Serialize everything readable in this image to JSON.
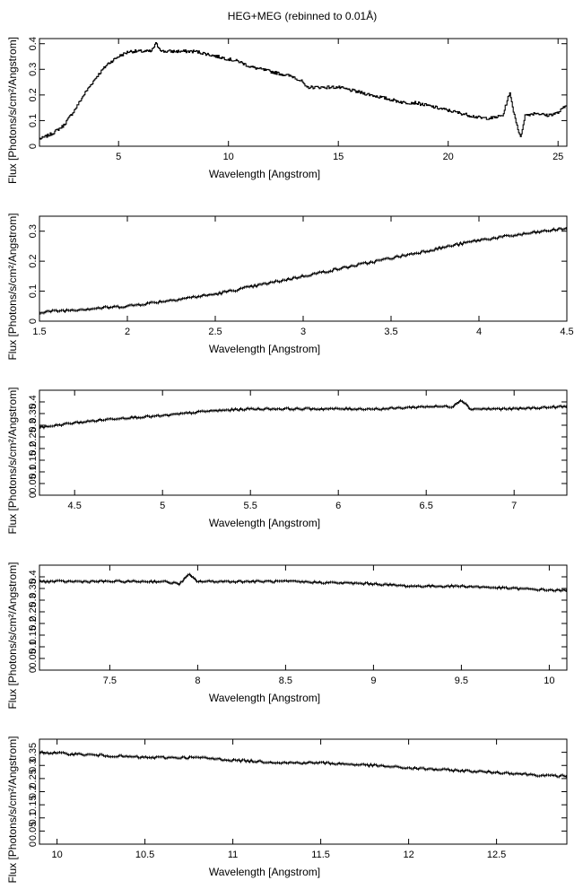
{
  "figure": {
    "title": "HEG+MEG (rebinned to 0.01Å)"
  },
  "chart_data": [
    {
      "type": "line",
      "xlabel": "Wavelength [Angstrom]",
      "ylabel": "Flux [Photons/s/cm²/Angstrom]",
      "xlim": [
        1.4,
        25.4
      ],
      "ylim": [
        0,
        0.42
      ],
      "xticks": [
        5,
        10,
        15,
        20,
        25
      ],
      "yticks": [
        0,
        0.1,
        0.2,
        0.3,
        0.4
      ],
      "xtick_labels": [
        "5",
        "10",
        "15",
        "20",
        "25"
      ],
      "ytick_labels": [
        "0",
        "0.1",
        "0.2",
        "0.3",
        "0.4"
      ],
      "series": [
        {
          "x": [
            1.5,
            2.0,
            2.5,
            3.0,
            3.5,
            4.0,
            4.5,
            5.0,
            5.5,
            6.0,
            6.5,
            6.7,
            7.0,
            7.5,
            8.0,
            8.5,
            9.0,
            9.5,
            10.0,
            10.5,
            11.0,
            11.5,
            12.0,
            12.5,
            13.0,
            13.4,
            13.5,
            14.0,
            14.5,
            15.0,
            15.5,
            16.0,
            16.5,
            17.0,
            17.5,
            18.0,
            18.5,
            19.0,
            19.5,
            20.0,
            20.5,
            21.0,
            21.5,
            22.0,
            22.5,
            22.8,
            23.0,
            23.3,
            23.5,
            24.0,
            24.5,
            25.0,
            25.4
          ],
          "y": [
            0.03,
            0.05,
            0.08,
            0.14,
            0.21,
            0.27,
            0.32,
            0.35,
            0.37,
            0.37,
            0.37,
            0.4,
            0.37,
            0.37,
            0.37,
            0.37,
            0.36,
            0.35,
            0.34,
            0.33,
            0.31,
            0.3,
            0.29,
            0.28,
            0.27,
            0.25,
            0.23,
            0.23,
            0.23,
            0.23,
            0.22,
            0.21,
            0.2,
            0.19,
            0.18,
            0.17,
            0.17,
            0.16,
            0.15,
            0.14,
            0.13,
            0.12,
            0.11,
            0.11,
            0.12,
            0.21,
            0.13,
            0.03,
            0.12,
            0.13,
            0.12,
            0.13,
            0.16
          ]
        }
      ]
    },
    {
      "type": "line",
      "xlabel": "Wavelength [Angstrom]",
      "ylabel": "Flux [Photons/s/cm²/Angstrom]",
      "xlim": [
        1.5,
        4.5
      ],
      "ylim": [
        0,
        0.35
      ],
      "xticks": [
        1.5,
        2,
        2.5,
        3,
        3.5,
        4,
        4.5
      ],
      "yticks": [
        0,
        0.1,
        0.2,
        0.3
      ],
      "xtick_labels": [
        "1.5",
        "2",
        "2.5",
        "3",
        "3.5",
        "4",
        "4.5"
      ],
      "ytick_labels": [
        "0",
        "0.1",
        "0.2",
        "0.3"
      ],
      "series": [
        {
          "x": [
            1.5,
            1.75,
            2.0,
            2.25,
            2.5,
            2.75,
            3.0,
            3.25,
            3.5,
            3.75,
            4.0,
            4.25,
            4.5
          ],
          "y": [
            0.03,
            0.04,
            0.05,
            0.07,
            0.09,
            0.12,
            0.15,
            0.18,
            0.21,
            0.24,
            0.27,
            0.29,
            0.31
          ]
        }
      ]
    },
    {
      "type": "line",
      "xlabel": "Wavelength [Angstrom]",
      "ylabel": "Flux [Photons/s/cm²/Angstrom]",
      "xlim": [
        4.3,
        7.3
      ],
      "ylim": [
        0,
        0.45
      ],
      "xticks": [
        4.5,
        5,
        5.5,
        6,
        6.5,
        7
      ],
      "yticks": [
        0,
        0.05,
        0.1,
        0.15,
        0.2,
        0.25,
        0.3,
        0.35,
        0.4
      ],
      "xtick_labels": [
        "4.5",
        "5",
        "5.5",
        "6",
        "6.5",
        "7"
      ],
      "ytick_labels": [
        "0",
        "0.05",
        "0.1",
        "0.15",
        "0.2",
        "0.25",
        "0.3",
        "0.35",
        "0.4"
      ],
      "series": [
        {
          "x": [
            4.3,
            4.5,
            4.75,
            5.0,
            5.25,
            5.5,
            5.75,
            6.0,
            6.25,
            6.5,
            6.65,
            6.7,
            6.75,
            7.0,
            7.3
          ],
          "y": [
            0.29,
            0.31,
            0.33,
            0.34,
            0.36,
            0.37,
            0.37,
            0.37,
            0.37,
            0.38,
            0.38,
            0.41,
            0.37,
            0.37,
            0.38
          ]
        }
      ]
    },
    {
      "type": "line",
      "xlabel": "Wavelength [Angstrom]",
      "ylabel": "Flux [Photons/s/cm²/Angstrom]",
      "xlim": [
        7.1,
        10.1
      ],
      "ylim": [
        0,
        0.45
      ],
      "xticks": [
        7.5,
        8,
        8.5,
        9,
        9.5,
        10
      ],
      "yticks": [
        0,
        0.05,
        0.1,
        0.15,
        0.2,
        0.25,
        0.3,
        0.35,
        0.4
      ],
      "xtick_labels": [
        "7.5",
        "8",
        "8.5",
        "9",
        "9.5",
        "10"
      ],
      "ytick_labels": [
        "0",
        "0.05",
        "0.1",
        "0.15",
        "0.2",
        "0.25",
        "0.3",
        "0.35",
        "0.4"
      ],
      "series": [
        {
          "x": [
            7.1,
            7.5,
            7.8,
            7.9,
            7.95,
            8.0,
            8.5,
            9.0,
            9.2,
            9.5,
            9.8,
            10.1
          ],
          "y": [
            0.38,
            0.38,
            0.38,
            0.37,
            0.41,
            0.38,
            0.38,
            0.37,
            0.36,
            0.36,
            0.35,
            0.34
          ]
        }
      ]
    },
    {
      "type": "line",
      "xlabel": "Wavelength [Angstrom]",
      "ylabel": "Flux [Photons/s/cm²/Angstrom]",
      "xlim": [
        9.9,
        12.9
      ],
      "ylim": [
        0,
        0.4
      ],
      "xticks": [
        10,
        10.5,
        11,
        11.5,
        12,
        12.5
      ],
      "yticks": [
        0,
        0.05,
        0.1,
        0.15,
        0.2,
        0.25,
        0.3,
        0.35
      ],
      "xtick_labels": [
        "10",
        "10.5",
        "11",
        "11.5",
        "12",
        "12.5"
      ],
      "ytick_labels": [
        "0",
        "0.05",
        "0.1",
        "0.15",
        "0.2",
        "0.25",
        "0.3",
        "0.35"
      ],
      "series": [
        {
          "x": [
            9.9,
            10.2,
            10.5,
            10.8,
            11.0,
            11.3,
            11.5,
            11.8,
            12.0,
            12.3,
            12.6,
            12.8,
            12.9
          ],
          "y": [
            0.35,
            0.34,
            0.33,
            0.33,
            0.32,
            0.31,
            0.31,
            0.3,
            0.29,
            0.28,
            0.27,
            0.26,
            0.26
          ]
        }
      ]
    }
  ]
}
